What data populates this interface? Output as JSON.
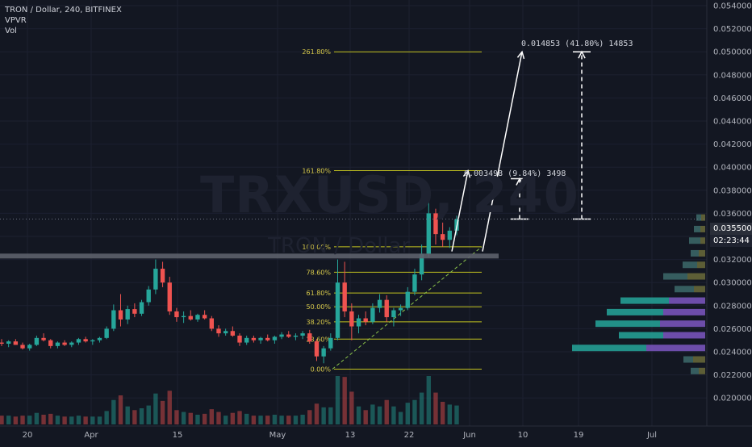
{
  "legend": {
    "line1": "TRON / Dollar, 240, BITFINEX",
    "line2": "VPVR",
    "line3": "Vol"
  },
  "watermark": {
    "symbol": "TRXUSD, 240",
    "description": "TRON / Dollar"
  },
  "annotations": {
    "target_small": "0.003498 (9.84%) 3498",
    "target_big": "0.014853 (41.80%) 14853"
  },
  "price_badges": {
    "current_price": "0.035500",
    "countdown": "02:23:44"
  },
  "colors": {
    "background": "#131722",
    "up_candle": "#26a69a",
    "down_candle": "#ef5350",
    "fib_line": "#c2c21f",
    "fib_text": "#d6c84a",
    "resistance_band": "#5d606b",
    "vp_up": "#26a69a",
    "vp_down": "#7e57c2",
    "vp_value_area_up": "#3d6a6a",
    "vp_value_area_down": "#6b6b3a"
  },
  "chart_data": {
    "type": "candlestick",
    "symbol": "TRXUSD",
    "exchange": "BITFINEX",
    "interval": "240",
    "y_axis": {
      "ticks": [
        "0.054000",
        "0.052000",
        "0.050000",
        "0.048000",
        "0.046000",
        "0.044000",
        "0.042000",
        "0.040000",
        "0.038000",
        "0.036000",
        "0.034000",
        "0.032000",
        "0.030000",
        "0.028000",
        "0.026000",
        "0.024000",
        "0.022000",
        "0.020000"
      ],
      "range": [
        0.0192,
        0.0552
      ]
    },
    "x_axis": {
      "ticks": [
        "20",
        "Apr",
        "15",
        "May",
        "13",
        "22",
        "Jun",
        "10",
        "19",
        "Jul"
      ]
    },
    "fib_levels": [
      {
        "label": "0.00%",
        "price": 0.0225
      },
      {
        "label": "23.60%",
        "price": 0.0251
      },
      {
        "label": "38.20%",
        "price": 0.0266
      },
      {
        "label": "50.00%",
        "price": 0.0279
      },
      {
        "label": "61.80%",
        "price": 0.0291
      },
      {
        "label": "78.60%",
        "price": 0.0309
      },
      {
        "label": "100.00%",
        "price": 0.0331
      },
      {
        "label": "161.80%",
        "price": 0.0397
      },
      {
        "label": "261.80%",
        "price": 0.05
      }
    ],
    "resistance_price": 0.0323,
    "current_price": 0.0355,
    "candles": [
      [
        0.0248,
        0.0251,
        0.0245,
        0.0247
      ],
      [
        0.0247,
        0.025,
        0.0244,
        0.0249
      ],
      [
        0.0249,
        0.0251,
        0.0246,
        0.0246
      ],
      [
        0.0246,
        0.0248,
        0.0242,
        0.0243
      ],
      [
        0.0243,
        0.0247,
        0.0241,
        0.0246
      ],
      [
        0.0246,
        0.0254,
        0.0245,
        0.0252
      ],
      [
        0.0252,
        0.0256,
        0.0249,
        0.025
      ],
      [
        0.025,
        0.0251,
        0.0243,
        0.0245
      ],
      [
        0.0245,
        0.0249,
        0.0243,
        0.0248
      ],
      [
        0.0248,
        0.025,
        0.0245,
        0.0246
      ],
      [
        0.0246,
        0.0249,
        0.0244,
        0.0248
      ],
      [
        0.0248,
        0.0252,
        0.0246,
        0.0251
      ],
      [
        0.0251,
        0.0253,
        0.0248,
        0.0249
      ],
      [
        0.0249,
        0.0251,
        0.0246,
        0.025
      ],
      [
        0.025,
        0.0253,
        0.0248,
        0.0252
      ],
      [
        0.0252,
        0.0262,
        0.0251,
        0.026
      ],
      [
        0.026,
        0.0281,
        0.0258,
        0.0276
      ],
      [
        0.0276,
        0.029,
        0.0262,
        0.0268
      ],
      [
        0.0268,
        0.028,
        0.0264,
        0.0277
      ],
      [
        0.0277,
        0.0282,
        0.027,
        0.0273
      ],
      [
        0.0273,
        0.0285,
        0.0271,
        0.0283
      ],
      [
        0.0283,
        0.0297,
        0.028,
        0.0294
      ],
      [
        0.0294,
        0.032,
        0.029,
        0.0312
      ],
      [
        0.0312,
        0.0318,
        0.0296,
        0.03
      ],
      [
        0.03,
        0.0305,
        0.0272,
        0.0275
      ],
      [
        0.0275,
        0.0278,
        0.0266,
        0.027
      ],
      [
        0.027,
        0.0275,
        0.0265,
        0.0271
      ],
      [
        0.0271,
        0.0276,
        0.0267,
        0.0268
      ],
      [
        0.0268,
        0.0273,
        0.0266,
        0.0272
      ],
      [
        0.0272,
        0.0276,
        0.0268,
        0.0269
      ],
      [
        0.0269,
        0.0271,
        0.0258,
        0.026
      ],
      [
        0.026,
        0.0263,
        0.0253,
        0.0256
      ],
      [
        0.0256,
        0.026,
        0.0254,
        0.0258
      ],
      [
        0.0258,
        0.0262,
        0.0253,
        0.0254
      ],
      [
        0.0254,
        0.0256,
        0.0245,
        0.0248
      ],
      [
        0.0248,
        0.0254,
        0.0246,
        0.0252
      ],
      [
        0.0252,
        0.0254,
        0.0248,
        0.025
      ],
      [
        0.025,
        0.0253,
        0.0247,
        0.0252
      ],
      [
        0.0252,
        0.0255,
        0.0249,
        0.025
      ],
      [
        0.025,
        0.0254,
        0.0247,
        0.0253
      ],
      [
        0.0253,
        0.0257,
        0.0251,
        0.0255
      ],
      [
        0.0255,
        0.0258,
        0.0252,
        0.0253
      ],
      [
        0.0253,
        0.0256,
        0.025,
        0.0254
      ],
      [
        0.0254,
        0.0258,
        0.0251,
        0.0256
      ],
      [
        0.0256,
        0.0259,
        0.0247,
        0.0249
      ],
      [
        0.0249,
        0.0251,
        0.0232,
        0.0236
      ],
      [
        0.0236,
        0.0245,
        0.023,
        0.0243
      ],
      [
        0.0243,
        0.0256,
        0.0241,
        0.0252
      ],
      [
        0.0252,
        0.032,
        0.025,
        0.03
      ],
      [
        0.03,
        0.0318,
        0.027,
        0.0275
      ],
      [
        0.0275,
        0.0282,
        0.025,
        0.0262
      ],
      [
        0.0262,
        0.0272,
        0.0256,
        0.0269
      ],
      [
        0.0269,
        0.0275,
        0.0263,
        0.0266
      ],
      [
        0.0266,
        0.0282,
        0.0264,
        0.0278
      ],
      [
        0.0278,
        0.029,
        0.0274,
        0.0285
      ],
      [
        0.0285,
        0.0289,
        0.0266,
        0.027
      ],
      [
        0.027,
        0.0278,
        0.0262,
        0.0276
      ],
      [
        0.0276,
        0.0281,
        0.0271,
        0.0278
      ],
      [
        0.0278,
        0.0296,
        0.0276,
        0.0292
      ],
      [
        0.0292,
        0.0312,
        0.0289,
        0.0307
      ],
      [
        0.0307,
        0.0333,
        0.0302,
        0.0325
      ],
      [
        0.0325,
        0.0371,
        0.0322,
        0.036
      ],
      [
        0.036,
        0.0364,
        0.0333,
        0.0342
      ],
      [
        0.0342,
        0.0352,
        0.0331,
        0.0337
      ],
      [
        0.0337,
        0.0348,
        0.033,
        0.0345
      ],
      [
        0.0345,
        0.0358,
        0.0341,
        0.0355
      ]
    ],
    "volume_profile": [
      {
        "price": 0.0356,
        "up": 6,
        "down": 5,
        "value_area": false
      },
      {
        "price": 0.0346,
        "up": 8,
        "down": 6,
        "value_area": false
      },
      {
        "price": 0.0336,
        "up": 14,
        "down": 6,
        "value_area": false
      },
      {
        "price": 0.0325,
        "up": 10,
        "down": 8,
        "value_area": false
      },
      {
        "price": 0.0315,
        "up": 18,
        "down": 10,
        "value_area": false
      },
      {
        "price": 0.0305,
        "up": 30,
        "down": 22,
        "value_area": false
      },
      {
        "price": 0.0294,
        "up": 24,
        "down": 14,
        "value_area": false
      },
      {
        "price": 0.0284,
        "up": 60,
        "down": 45,
        "value_area": true
      },
      {
        "price": 0.0274,
        "up": 70,
        "down": 52,
        "value_area": true
      },
      {
        "price": 0.0264,
        "up": 80,
        "down": 56,
        "value_area": true
      },
      {
        "price": 0.0254,
        "up": 55,
        "down": 52,
        "value_area": true
      },
      {
        "price": 0.0243,
        "up": 92,
        "down": 73,
        "value_area": true
      },
      {
        "price": 0.0233,
        "up": 12,
        "down": 15,
        "value_area": false
      },
      {
        "price": 0.0223,
        "up": 10,
        "down": 8,
        "value_area": false
      }
    ]
  }
}
